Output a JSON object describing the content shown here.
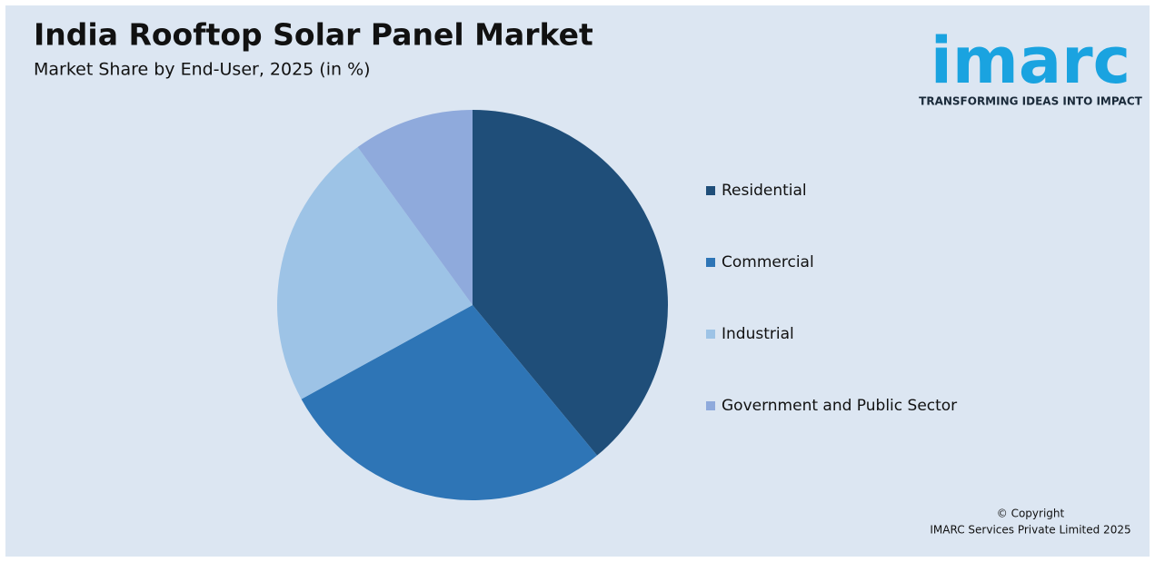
{
  "chart_data": {
    "type": "pie",
    "title": "India Rooftop Solar Panel Market",
    "subtitle": "Market Share by End-User, 2025 (in %)",
    "categories": [
      "Residential",
      "Commercial",
      "Industrial",
      "Government and Public Sector"
    ],
    "values": [
      39,
      28,
      23,
      10
    ],
    "colors": [
      "#1f4e79",
      "#2e75b6",
      "#9dc3e6",
      "#8faadc"
    ],
    "legend": "right"
  },
  "logo": {
    "name": "imarc",
    "tagline": "TRANSFORMING IDEAS INTO IMPACT"
  },
  "footer": {
    "line1": "© Copyright",
    "line2": "IMARC Services Private Limited 2025"
  }
}
